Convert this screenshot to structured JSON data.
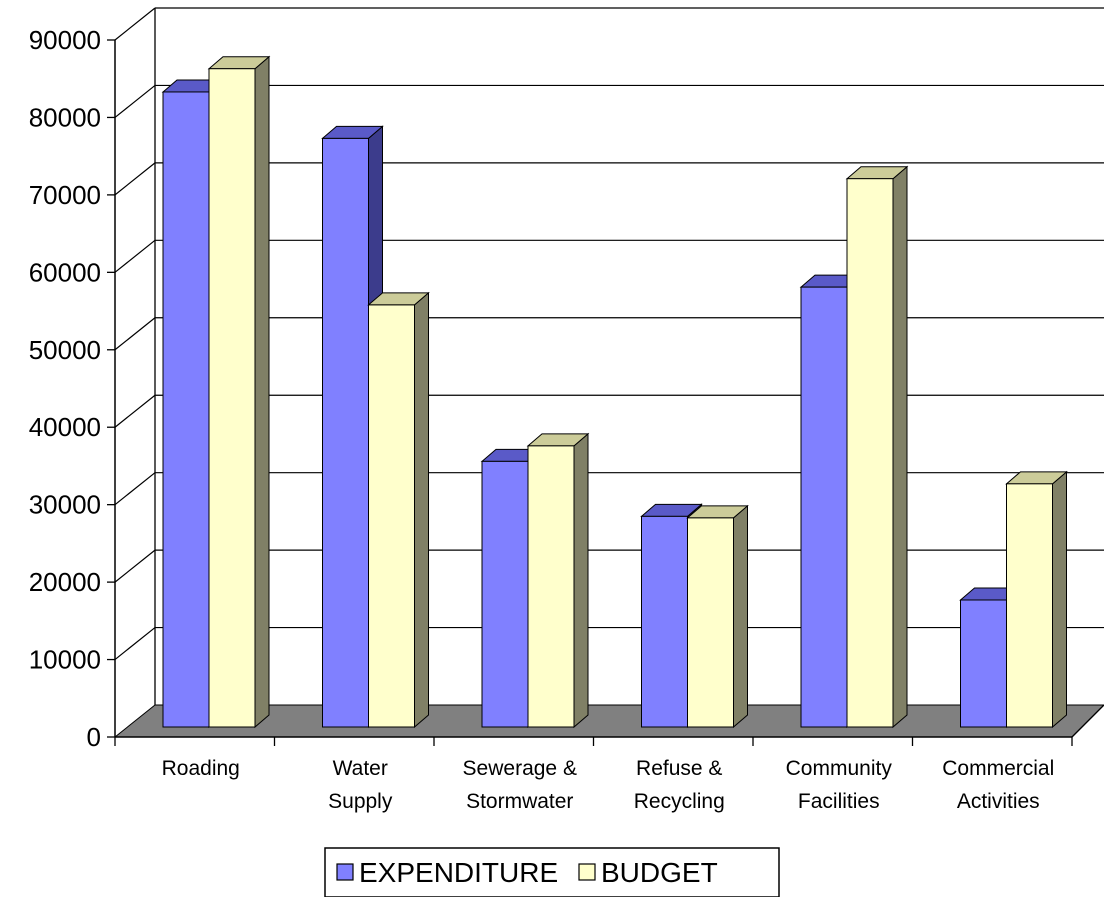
{
  "chart_data": {
    "type": "bar",
    "categories": [
      [
        "Roading"
      ],
      [
        "Water",
        "Supply"
      ],
      [
        "Sewerage &",
        "Stormwater"
      ],
      [
        "Refuse &",
        "Recycling"
      ],
      [
        "Community",
        "Facilities"
      ],
      [
        "Commercial",
        "Activities"
      ]
    ],
    "series": [
      {
        "name": "EXPENDITURE",
        "values": [
          82000,
          76000,
          34300,
          27200,
          56800,
          16400
        ],
        "color": "#8080ff",
        "side_color": "#3c3c8c",
        "top_color": "#5a5ac8"
      },
      {
        "name": "BUDGET",
        "values": [
          85000,
          54500,
          36300,
          27000,
          70800,
          31400
        ],
        "color": "#ffffcc",
        "side_color": "#808066",
        "top_color": "#cccc99"
      }
    ],
    "yticks": [
      "0",
      "10000",
      "20000",
      "30000",
      "40000",
      "50000",
      "60000",
      "70000",
      "80000",
      "90000"
    ],
    "ylim": [
      0,
      90000
    ],
    "title": "",
    "xlabel": "",
    "ylabel": "",
    "grid": true,
    "legend_position": "bottom",
    "floor_color": "#808080",
    "style": "3d-clustered-column"
  }
}
